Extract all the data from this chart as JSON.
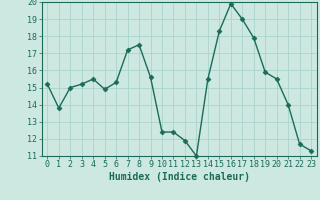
{
  "x": [
    0,
    1,
    2,
    3,
    4,
    5,
    6,
    7,
    8,
    9,
    10,
    11,
    12,
    13,
    14,
    15,
    16,
    17,
    18,
    19,
    20,
    21,
    22,
    23
  ],
  "y": [
    15.2,
    13.8,
    15.0,
    15.2,
    15.5,
    14.9,
    15.3,
    17.2,
    17.5,
    15.6,
    12.4,
    12.4,
    11.9,
    11.0,
    15.5,
    18.3,
    19.9,
    19.0,
    17.9,
    15.9,
    15.5,
    14.0,
    11.7,
    11.3
  ],
  "xlim": [
    -0.5,
    23.5
  ],
  "ylim": [
    11,
    20
  ],
  "xticks": [
    0,
    1,
    2,
    3,
    4,
    5,
    6,
    7,
    8,
    9,
    10,
    11,
    12,
    13,
    14,
    15,
    16,
    17,
    18,
    19,
    20,
    21,
    22,
    23
  ],
  "yticks": [
    11,
    12,
    13,
    14,
    15,
    16,
    17,
    18,
    19,
    20
  ],
  "xlabel": "Humidex (Indice chaleur)",
  "line_color": "#1a6b5a",
  "marker": "D",
  "marker_size": 2.5,
  "bg_color": "#cce8e0",
  "grid_color": "#aad4cc",
  "xlabel_fontsize": 7,
  "tick_fontsize": 6,
  "line_width": 1.0
}
